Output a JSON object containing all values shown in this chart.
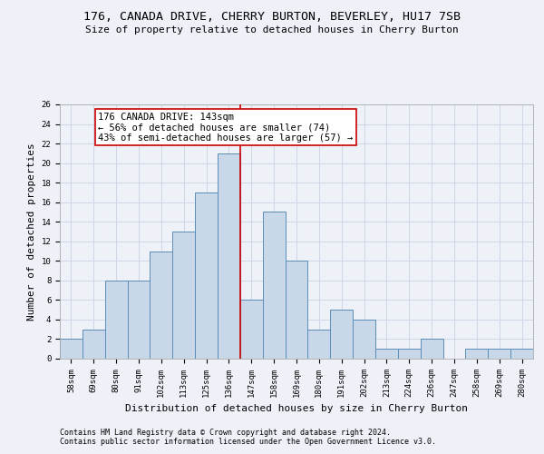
{
  "title": "176, CANADA DRIVE, CHERRY BURTON, BEVERLEY, HU17 7SB",
  "subtitle": "Size of property relative to detached houses in Cherry Burton",
  "xlabel": "Distribution of detached houses by size in Cherry Burton",
  "ylabel": "Number of detached properties",
  "categories": [
    "58sqm",
    "69sqm",
    "80sqm",
    "91sqm",
    "102sqm",
    "113sqm",
    "125sqm",
    "136sqm",
    "147sqm",
    "158sqm",
    "169sqm",
    "180sqm",
    "191sqm",
    "202sqm",
    "213sqm",
    "224sqm",
    "236sqm",
    "247sqm",
    "258sqm",
    "269sqm",
    "280sqm"
  ],
  "values": [
    2,
    3,
    8,
    8,
    11,
    13,
    17,
    21,
    6,
    15,
    10,
    3,
    5,
    4,
    1,
    1,
    2,
    0,
    1,
    1,
    1
  ],
  "bar_color": "#c8d8e8",
  "bar_edge_color": "#5b8db8",
  "grid_color": "#d0d8e8",
  "background_color": "#eef2f8",
  "annotation_line1": "176 CANADA DRIVE: 143sqm",
  "annotation_line2": "← 56% of detached houses are smaller (74)",
  "annotation_line3": "43% of semi-detached houses are larger (57) →",
  "annotation_box_color": "#ffffff",
  "annotation_box_edge_color": "#cc0000",
  "vline_x": 7.5,
  "vline_color": "#cc0000",
  "ylim": [
    0,
    26
  ],
  "yticks": [
    0,
    2,
    4,
    6,
    8,
    10,
    12,
    14,
    16,
    18,
    20,
    22,
    24,
    26
  ],
  "footnote1": "Contains HM Land Registry data © Crown copyright and database right 2024.",
  "footnote2": "Contains public sector information licensed under the Open Government Licence v3.0.",
  "title_fontsize": 9.5,
  "subtitle_fontsize": 8,
  "xlabel_fontsize": 8,
  "ylabel_fontsize": 8,
  "tick_fontsize": 6.5,
  "annotation_fontsize": 7.5,
  "footnote_fontsize": 6
}
